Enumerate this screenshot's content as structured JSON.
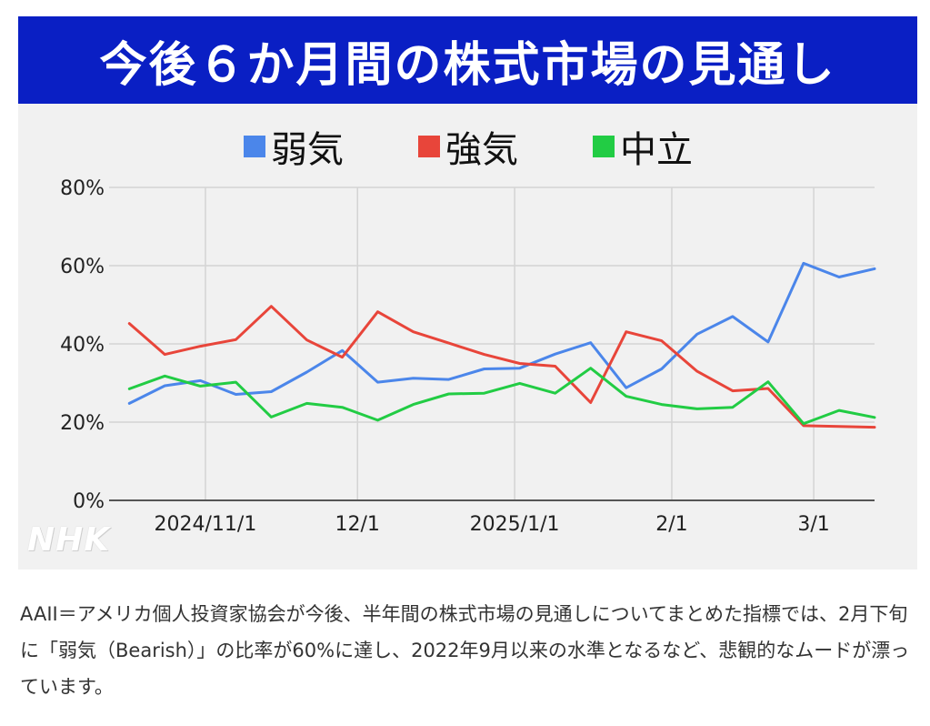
{
  "title": "今後６か月間の株式市場の見通し",
  "legend": [
    {
      "name": "弱気",
      "color": "#4b86ea"
    },
    {
      "name": "強気",
      "color": "#e8453a"
    },
    {
      "name": "中立",
      "color": "#22cc44"
    }
  ],
  "watermark": "NHK",
  "caption": "AAII＝アメリカ個人投資家協会が今後、半年間の株式市場の見通しについてまとめた指標では、2月下旬に「弱気（Bearish）」の比率が60%に達し、2022年9月以来の水準となるなど、悲観的なムードが漂っています。",
  "chart_data": {
    "type": "line",
    "title": "今後６か月間の株式市場の見通し",
    "xlabel": "",
    "ylabel": "",
    "ylim": [
      0,
      80
    ],
    "yticks": [
      "0%",
      "20%",
      "40%",
      "60%",
      "80%"
    ],
    "xticks": [
      {
        "label": "2024/11/1",
        "x": "2024-11-01"
      },
      {
        "label": "12/1",
        "x": "2024-12-01"
      },
      {
        "label": "2025/1/1",
        "x": "2025-01-01"
      },
      {
        "label": "2/1",
        "x": "2025-02-01"
      },
      {
        "label": "3/1",
        "x": "2025-03-01"
      }
    ],
    "grid": true,
    "legend_position": "top",
    "x": [
      "2024-10-17",
      "2024-10-24",
      "2024-10-31",
      "2024-11-07",
      "2024-11-14",
      "2024-11-21",
      "2024-11-28",
      "2024-12-05",
      "2024-12-12",
      "2024-12-19",
      "2024-12-26",
      "2025-01-02",
      "2025-01-09",
      "2025-01-16",
      "2025-01-23",
      "2025-01-30",
      "2025-02-06",
      "2025-02-13",
      "2025-02-20",
      "2025-02-27",
      "2025-03-06",
      "2025-03-13"
    ],
    "series": [
      {
        "name": "弱気",
        "color": "#4b86ea",
        "values": [
          24.8,
          29.3,
          30.6,
          27.1,
          27.8,
          32.8,
          38.3,
          30.2,
          31.2,
          30.9,
          33.6,
          33.8,
          37.4,
          40.3,
          28.8,
          33.6,
          42.5,
          47.0,
          40.5,
          60.6,
          57.1,
          59.2
        ]
      },
      {
        "name": "強気",
        "color": "#e8453a",
        "values": [
          45.2,
          37.3,
          39.4,
          41.1,
          49.6,
          41.0,
          36.6,
          48.2,
          43.1,
          40.2,
          37.3,
          35.0,
          34.3,
          25.0,
          43.1,
          40.8,
          33.0,
          28.0,
          28.6,
          19.1,
          18.9,
          18.7
        ]
      },
      {
        "name": "中立",
        "color": "#22cc44",
        "values": [
          28.5,
          31.8,
          29.2,
          30.2,
          21.3,
          24.8,
          23.8,
          20.5,
          24.5,
          27.2,
          27.4,
          29.9,
          27.4,
          33.8,
          26.6,
          24.5,
          23.4,
          23.8,
          30.3,
          19.6,
          23.0,
          21.2
        ]
      }
    ]
  }
}
